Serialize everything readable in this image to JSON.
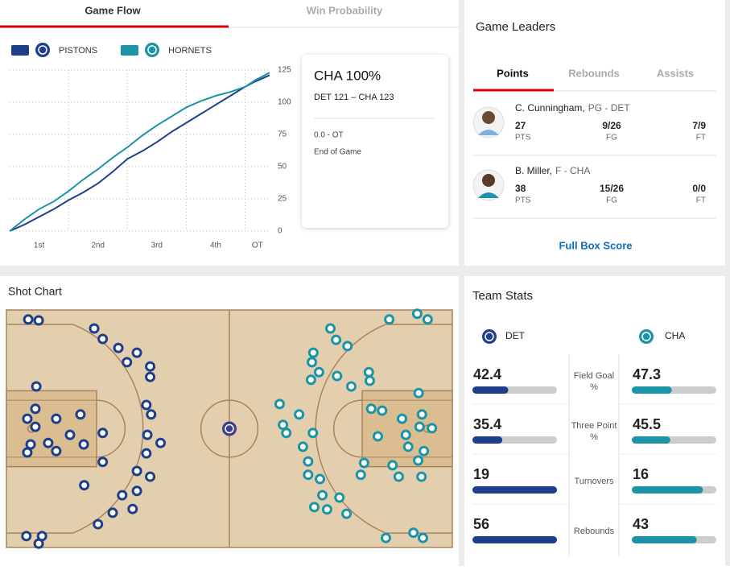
{
  "chart_data": [
    {
      "type": "line",
      "x": [
        0,
        3,
        6,
        9,
        12,
        15,
        18,
        21,
        24,
        27,
        30,
        33,
        36,
        39,
        42,
        45,
        48,
        50,
        53
      ],
      "series": [
        {
          "name": "PISTONS",
          "color": "#1d3f8a",
          "values": [
            0,
            5,
            11,
            17,
            24,
            30,
            37,
            46,
            56,
            62,
            69,
            77,
            84,
            91,
            98,
            105,
            112,
            116,
            121
          ]
        },
        {
          "name": "HORNETS",
          "color": "#1a94a6",
          "values": [
            0,
            9,
            17,
            23,
            31,
            40,
            48,
            57,
            65,
            74,
            82,
            89,
            96,
            101,
            105,
            108,
            112,
            117,
            123
          ]
        }
      ],
      "xlim": [
        0,
        53
      ],
      "ylim": [
        0,
        125
      ],
      "yticks": [
        0,
        25,
        50,
        75,
        100,
        125
      ],
      "xticks": [
        {
          "value": 6,
          "label": "1st"
        },
        {
          "value": 18,
          "label": "2nd"
        },
        {
          "value": 30,
          "label": "3rd"
        },
        {
          "value": 42,
          "label": "4th"
        },
        {
          "value": 50.5,
          "label": "OT"
        }
      ],
      "xgrid": [
        12,
        24,
        36,
        48
      ],
      "grid": true
    },
    {
      "type": "scatter",
      "title": "Shot Chart",
      "xlim": [
        0,
        94
      ],
      "ylim": [
        0,
        50
      ],
      "series": [
        {
          "color": "#1d3f8a",
          "x": [
            4.6,
            6.8,
            18.5,
            20.3,
            23.6,
            25.4,
            27.5,
            30.3,
            30.3,
            6.3,
            6.1,
            4.4,
            6.1,
            10.5,
            15.6,
            13.4,
            16.3,
            20.3,
            29.5,
            30.5,
            29.7,
            32.5,
            29.5,
            5.1,
            8.8,
            10.5,
            4.4,
            20.3,
            27.5,
            30.3,
            16.4,
            27.5,
            24.4,
            26.6,
            22.4,
            19.3,
            4.2,
            7.5,
            6.8
          ],
          "y": [
            2.0,
            2.2,
            3.9,
            6.1,
            8.0,
            11.0,
            9.0,
            11.9,
            14.1,
            16.1,
            20.8,
            22.9,
            24.6,
            22.9,
            22.0,
            26.3,
            28.3,
            25.9,
            20.0,
            22.0,
            26.3,
            28.0,
            30.2,
            28.3,
            28.0,
            29.7,
            30.0,
            32.0,
            33.9,
            35.1,
            36.9,
            38.1,
            39.0,
            41.9,
            42.7,
            45.1,
            47.6,
            47.6,
            49.2
          ]
        },
        {
          "color": "#1a94a6",
          "x": [
            86.6,
            88.8,
            80.7,
            68.3,
            69.5,
            71.9,
            64.7,
            64.4,
            65.9,
            64.2,
            69.7,
            76.4,
            76.6,
            72.7,
            86.9,
            57.6,
            61.7,
            58.3,
            59.0,
            64.6,
            76.9,
            79.2,
            83.4,
            87.6,
            78.3,
            84.2,
            87.1,
            89.7,
            84.7,
            88.0,
            62.5,
            75.4,
            63.6,
            63.6,
            66.1,
            74.7,
            81.4,
            82.7,
            86.8,
            87.5,
            66.6,
            70.2,
            64.9,
            67.6,
            71.7,
            80.0,
            85.8,
            87.8
          ],
          "y": [
            0.8,
            2.0,
            2.0,
            3.9,
            6.3,
            7.6,
            9.0,
            11.0,
            13.1,
            14.7,
            13.9,
            13.1,
            14.9,
            16.1,
            17.5,
            19.8,
            22.0,
            24.2,
            25.9,
            25.9,
            20.8,
            21.2,
            22.9,
            22.0,
            26.6,
            26.3,
            24.6,
            24.9,
            28.8,
            29.7,
            28.8,
            32.2,
            31.9,
            34.7,
            35.6,
            34.7,
            32.7,
            35.1,
            31.7,
            35.1,
            39.0,
            39.5,
            41.5,
            42.0,
            42.9,
            48.0,
            46.9,
            48.0
          ]
        }
      ]
    }
  ],
  "game_flow": {
    "tabs": [
      "Game Flow",
      "Win Probability"
    ],
    "card": {
      "headline": "CHA 100%",
      "score": "DET 121 – CHA 123",
      "time": "0.0 - OT",
      "status": "End of Game"
    }
  },
  "game_leaders": {
    "title": "Game Leaders",
    "tabs": [
      "Points",
      "Rebounds",
      "Assists"
    ],
    "players": [
      {
        "name": "C. Cunningham,",
        "position": "PG - DET",
        "stats": [
          {
            "value": "27",
            "label": "PTS"
          },
          {
            "value": "9/26",
            "label": "FG"
          },
          {
            "value": "7/9",
            "label": "FT"
          }
        ]
      },
      {
        "name": "B. Miller,",
        "position": "F - CHA",
        "stats": [
          {
            "value": "38",
            "label": "PTS"
          },
          {
            "value": "15/26",
            "label": "FG"
          },
          {
            "value": "0/0",
            "label": "FT"
          }
        ]
      }
    ],
    "link": "Full Box Score"
  },
  "team_stats": {
    "title": "Team Stats",
    "teams": [
      "DET",
      "CHA"
    ],
    "colors": [
      "#1d3f8a",
      "#1a94a6"
    ],
    "rows": [
      {
        "label": "Field Goal %",
        "values": [
          42.4,
          47.3
        ],
        "scale": "percent"
      },
      {
        "label": "Three Point %",
        "values": [
          35.4,
          45.5
        ],
        "scale": "percent"
      },
      {
        "label": "Turnovers",
        "values": [
          19,
          16
        ],
        "scale": "relative"
      },
      {
        "label": "Rebounds",
        "values": [
          56,
          43
        ],
        "scale": "relative"
      }
    ]
  }
}
